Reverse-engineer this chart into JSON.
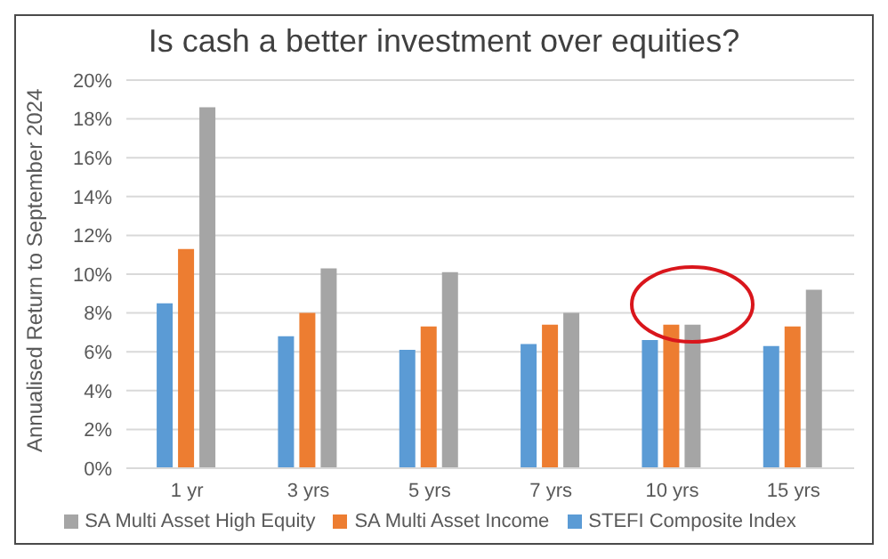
{
  "chart_data": {
    "type": "bar",
    "title": "Is cash a better investment over equities?",
    "ylabel": "Annualised Return to September 2024",
    "categories": [
      "1 yr",
      "3 yrs",
      "5 yrs",
      "7 yrs",
      "10 yrs",
      "15 yrs"
    ],
    "series": [
      {
        "name": "STEFI Composite Index",
        "color": "#5b9bd5",
        "values": [
          8.5,
          6.8,
          6.1,
          6.4,
          6.6,
          6.3
        ]
      },
      {
        "name": "SA Multi Asset Income",
        "color": "#ed7d31",
        "values": [
          11.3,
          8.0,
          7.3,
          7.4,
          7.4,
          7.3
        ]
      },
      {
        "name": "SA Multi Asset High Equity",
        "color": "#a5a5a5",
        "values": [
          18.6,
          10.3,
          10.1,
          8.0,
          7.4,
          9.2
        ]
      }
    ],
    "ylim": [
      0,
      20
    ],
    "yticks": [
      {
        "value": 0,
        "label": "0%"
      },
      {
        "value": 2,
        "label": "2%"
      },
      {
        "value": 4,
        "label": "4%"
      },
      {
        "value": 6,
        "label": "6%"
      },
      {
        "value": 8,
        "label": "8%"
      },
      {
        "value": 10,
        "label": "10%"
      },
      {
        "value": 12,
        "label": "12%"
      },
      {
        "value": 14,
        "label": "14%"
      },
      {
        "value": 16,
        "label": "16%"
      },
      {
        "value": 18,
        "label": "18%"
      },
      {
        "value": 20,
        "label": "20%"
      }
    ],
    "grid": "y",
    "legend": "bottom"
  }
}
